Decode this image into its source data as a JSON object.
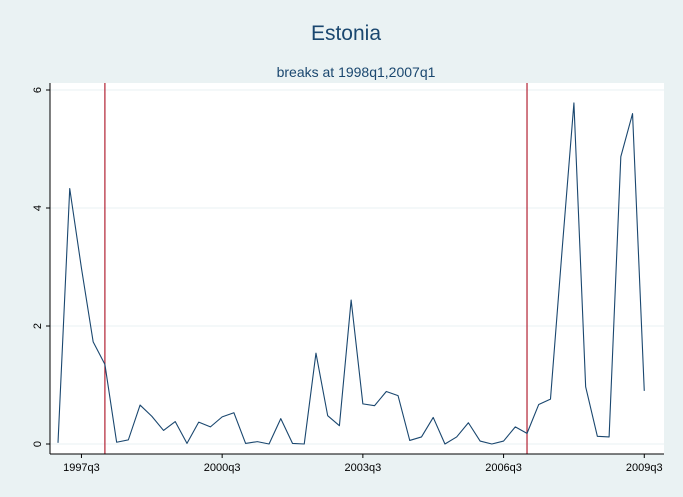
{
  "colors": {
    "background": "#eaf2f3",
    "plot_background": "#ffffff",
    "series_line": "#1a476f",
    "break_line": "#b22234",
    "gridline": "#eaf2f3",
    "title": "#1a476f"
  },
  "chart_data": {
    "type": "line",
    "title": "Estonia",
    "subtitle": "breaks at 1998q1,2007q1",
    "xlabel": "",
    "ylabel": "",
    "grid": true,
    "legend": "none",
    "xlim": [
      "1997q1",
      "2009q4"
    ],
    "ylim": [
      -0.2,
      6.2
    ],
    "y_ticks": [
      0,
      2,
      4,
      6
    ],
    "x_ticks": [
      "1997q3",
      "2000q3",
      "2003q3",
      "2006q3",
      "2009q3"
    ],
    "break_lines_at": [
      "1998q1",
      "2007q1"
    ],
    "series": [
      {
        "x": [
          "1997q1",
          "1997q2",
          "1997q3",
          "1997q4",
          "1998q1",
          "1998q2",
          "1998q3",
          "1998q4",
          "1999q1",
          "1999q2",
          "1999q3",
          "1999q4",
          "2000q1",
          "2000q2",
          "2000q3",
          "2000q4",
          "2001q1",
          "2001q2",
          "2001q3",
          "2001q4",
          "2002q1",
          "2002q2",
          "2002q3",
          "2002q4",
          "2003q1",
          "2003q2",
          "2003q3",
          "2003q4",
          "2004q1",
          "2004q2",
          "2004q3",
          "2004q4",
          "2005q1",
          "2005q2",
          "2005q3",
          "2005q4",
          "2006q1",
          "2006q2",
          "2006q3",
          "2006q4",
          "2007q1",
          "2007q2",
          "2007q3",
          "2007q4",
          "2008q1",
          "2008q2",
          "2008q3",
          "2008q4",
          "2009q1",
          "2009q2",
          "2009q3",
          "2009q4"
        ],
        "values": [
          0.02,
          4.33,
          2.98,
          1.73,
          1.35,
          0.03,
          0.07,
          0.66,
          0.47,
          0.23,
          0.38,
          0.01,
          0.37,
          0.29,
          0.46,
          0.53,
          0.01,
          0.04,
          0.0,
          0.43,
          0.01,
          0.0,
          1.54,
          0.48,
          0.31,
          2.44,
          0.68,
          0.65,
          0.89,
          0.82,
          0.06,
          0.12,
          0.45,
          0.0,
          0.12,
          0.36,
          0.05,
          0.0,
          0.05,
          0.29,
          0.18,
          0.67,
          0.76,
          3.31,
          5.78,
          0.97,
          0.13,
          0.12,
          4.87,
          5.6,
          0.9,
          null
        ]
      }
    ]
  }
}
